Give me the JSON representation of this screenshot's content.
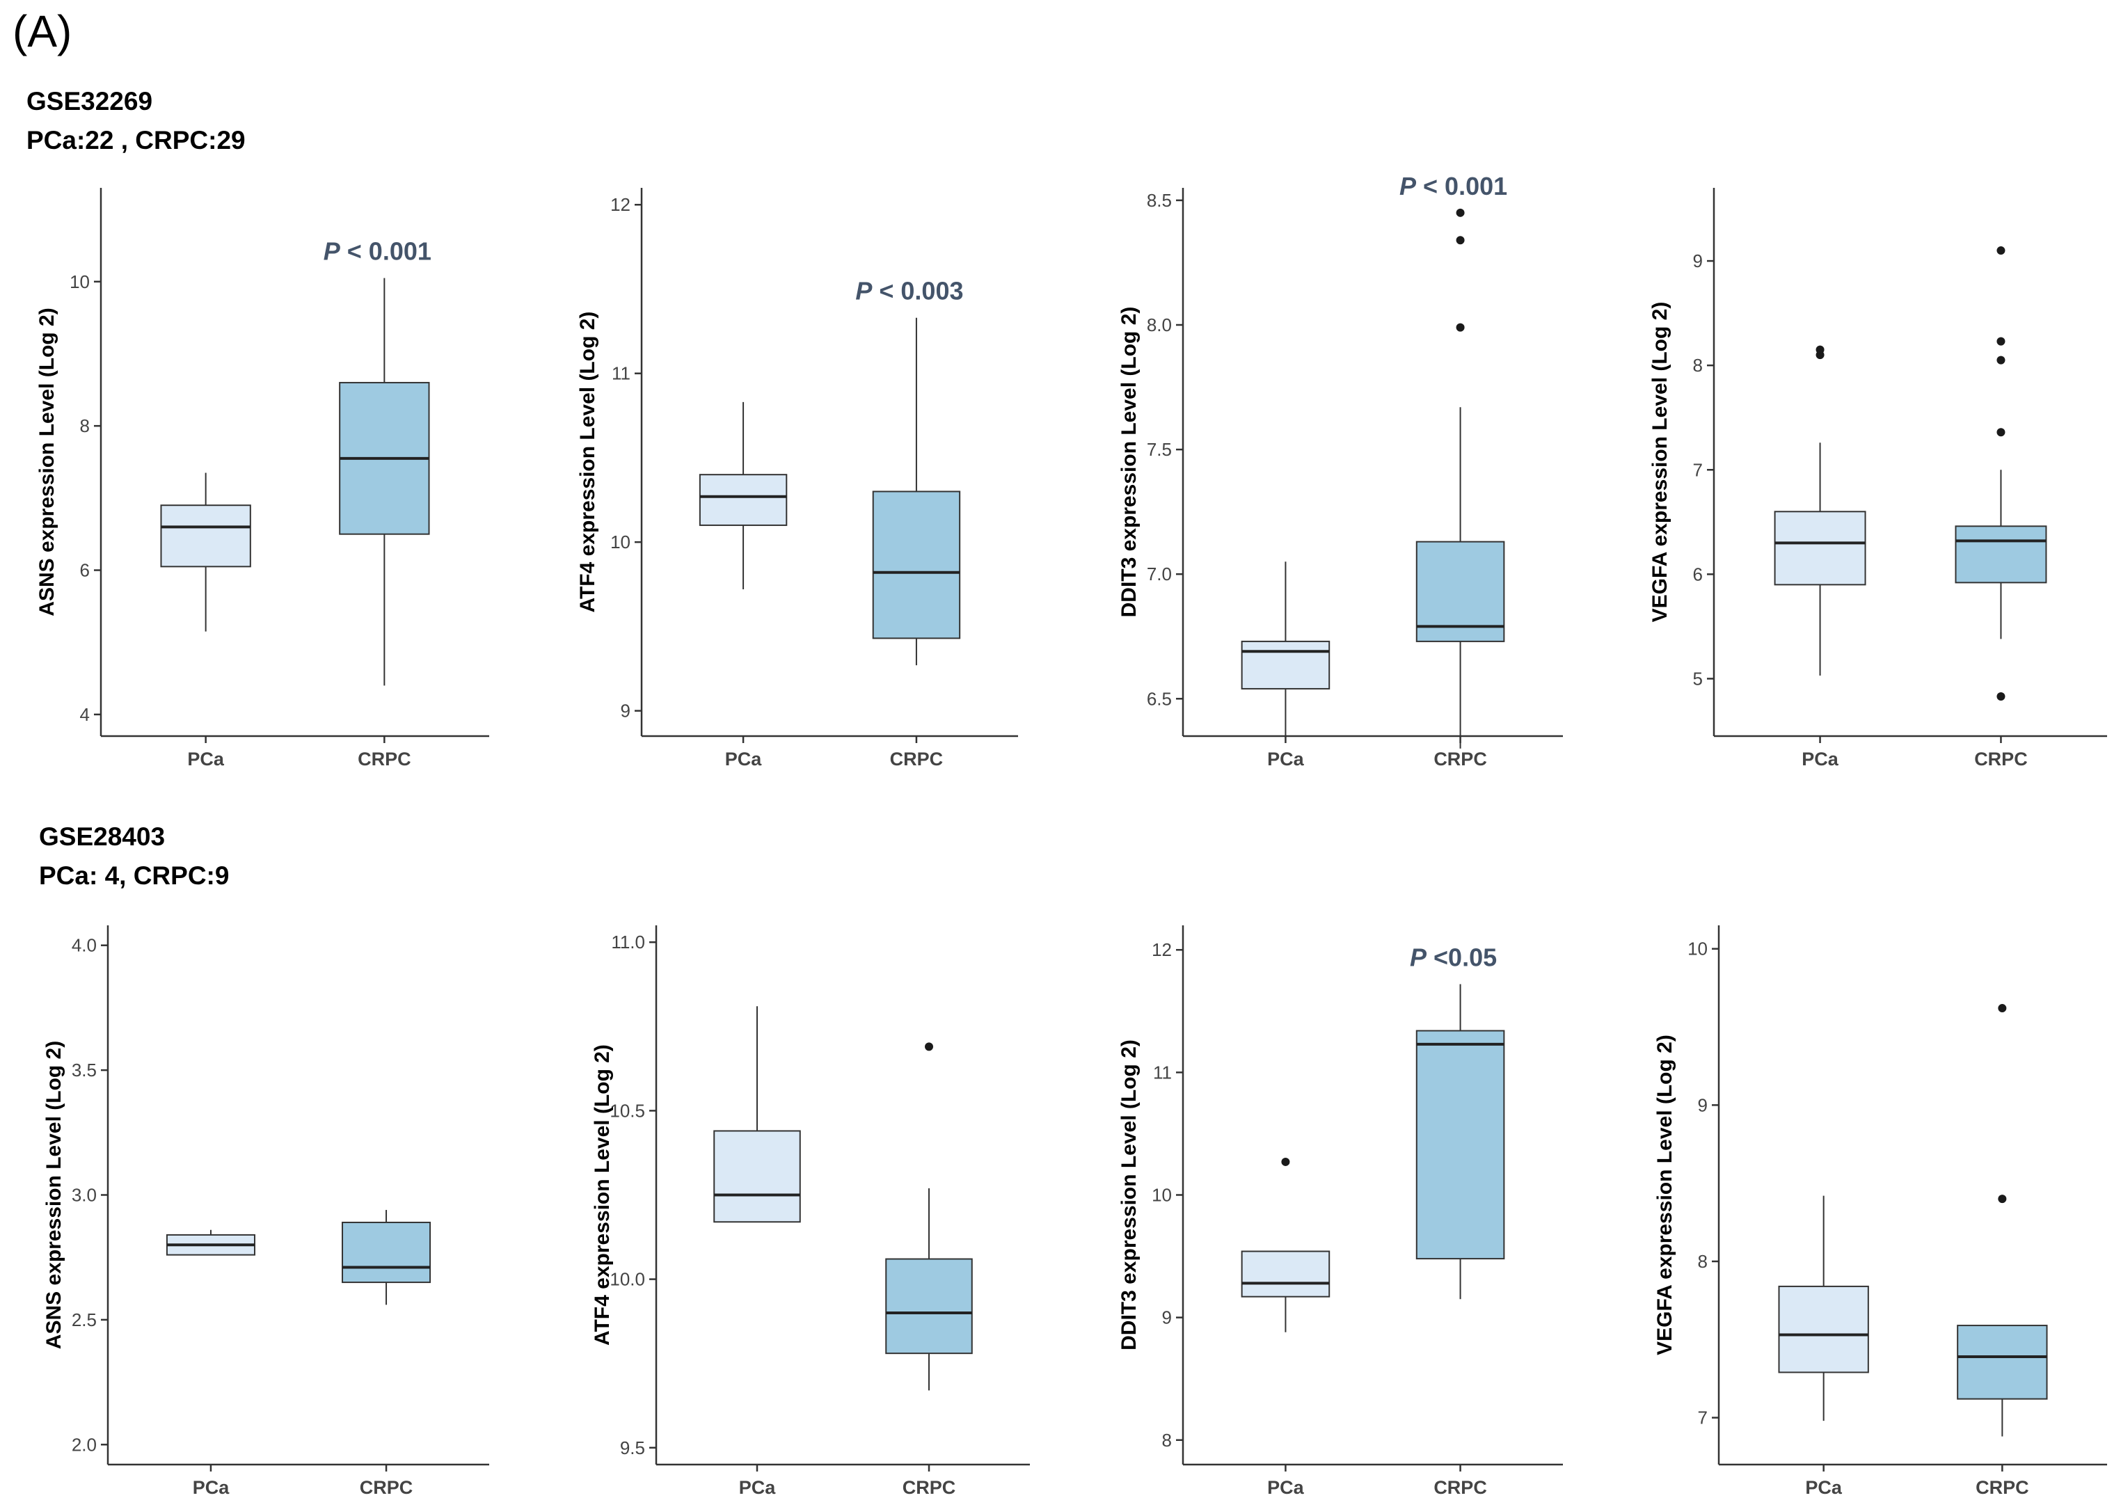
{
  "panel_label": "(A)",
  "rows": [
    {
      "dataset": "GSE32269",
      "samples": "PCa:22 , CRPC:29"
    },
    {
      "dataset": "GSE28403",
      "samples": "PCa: 4, CRPC:9"
    }
  ],
  "colors": {
    "pca_fill": "#dbe9f6",
    "crpc_fill": "#9ecae1",
    "box_stroke": "#333333",
    "pvalue_text": "#44546a",
    "outlier": "#1a1a1a"
  },
  "chart_data": [
    {
      "type": "box",
      "row": 0,
      "col": 0,
      "ylabel": "ASNS expression Level (Log 2)",
      "ylim": [
        3.7,
        11.3
      ],
      "yticks": [
        4,
        6,
        8,
        10
      ],
      "categories": [
        "PCa",
        "CRPC"
      ],
      "boxes": [
        {
          "group": "PCa",
          "min": 5.15,
          "q1": 6.05,
          "median": 6.6,
          "q3": 6.9,
          "max": 7.35,
          "outliers": []
        },
        {
          "group": "CRPC",
          "min": 4.4,
          "q1": 6.5,
          "median": 7.55,
          "q3": 8.6,
          "max": 10.05,
          "outliers": []
        }
      ],
      "pvalue": {
        "p": "P",
        "rest": " < 0.001"
      }
    },
    {
      "type": "box",
      "row": 0,
      "col": 1,
      "ylabel": "ATF4 expression Level (Log 2)",
      "ylim": [
        8.85,
        12.1
      ],
      "yticks": [
        9,
        10,
        11,
        12
      ],
      "categories": [
        "PCa",
        "CRPC"
      ],
      "boxes": [
        {
          "group": "PCa",
          "min": 9.72,
          "q1": 10.1,
          "median": 10.27,
          "q3": 10.4,
          "max": 10.83,
          "outliers": []
        },
        {
          "group": "CRPC",
          "min": 9.27,
          "q1": 9.43,
          "median": 9.82,
          "q3": 10.3,
          "max": 11.33,
          "outliers": []
        }
      ],
      "pvalue": {
        "p": "P",
        "rest": " < 0.003"
      }
    },
    {
      "type": "box",
      "row": 0,
      "col": 2,
      "ylabel": "DDIT3 expression Level (Log 2)",
      "ylim": [
        6.35,
        8.55
      ],
      "yticks": [
        6.5,
        7.0,
        7.5,
        8.0,
        8.5
      ],
      "ytick_labels": [
        "6.5",
        "7.0",
        "7.5",
        "8.0",
        "8.5"
      ],
      "categories": [
        "PCa",
        "CRPC"
      ],
      "boxes": [
        {
          "group": "PCa",
          "min": 6.35,
          "q1": 6.54,
          "median": 6.69,
          "q3": 6.73,
          "max": 7.05,
          "outliers": []
        },
        {
          "group": "CRPC",
          "min": 6.3,
          "q1": 6.73,
          "median": 6.79,
          "q3": 7.13,
          "max": 7.67,
          "outliers": [
            7.99,
            8.34,
            8.45
          ]
        }
      ],
      "pvalue": {
        "p": "P",
        "rest": " < 0.001"
      }
    },
    {
      "type": "box",
      "row": 0,
      "col": 3,
      "ylabel": "VEGFA expression Level (Log 2)",
      "ylim": [
        4.45,
        9.7
      ],
      "yticks": [
        5,
        6,
        7,
        8,
        9
      ],
      "categories": [
        "PCa",
        "CRPC"
      ],
      "boxes": [
        {
          "group": "PCa",
          "min": 5.03,
          "q1": 5.9,
          "median": 6.3,
          "q3": 6.6,
          "max": 7.26,
          "outliers": [
            8.1,
            8.15
          ]
        },
        {
          "group": "CRPC",
          "min": 5.38,
          "q1": 5.92,
          "median": 6.32,
          "q3": 6.46,
          "max": 7.0,
          "outliers": [
            4.83,
            7.36,
            8.05,
            8.23,
            9.1
          ]
        }
      ],
      "pvalue": null
    },
    {
      "type": "box",
      "row": 1,
      "col": 0,
      "ylabel": "ASNS expression Level (Log 2)",
      "ylim": [
        1.92,
        4.08
      ],
      "yticks": [
        2.0,
        2.5,
        3.0,
        3.5,
        4.0
      ],
      "ytick_labels": [
        "2.0",
        "2.5",
        "3.0",
        "3.5",
        "4.0"
      ],
      "categories": [
        "PCa",
        "CRPC"
      ],
      "boxes": [
        {
          "group": "PCa",
          "min": 2.76,
          "q1": 2.76,
          "median": 2.8,
          "q3": 2.84,
          "max": 2.86,
          "outliers": []
        },
        {
          "group": "CRPC",
          "min": 2.56,
          "q1": 2.65,
          "median": 2.71,
          "q3": 2.89,
          "max": 2.94,
          "outliers": []
        }
      ],
      "pvalue": null
    },
    {
      "type": "box",
      "row": 1,
      "col": 1,
      "ylabel": "ATF4 expression Level (Log 2)",
      "ylim": [
        9.45,
        11.05
      ],
      "yticks": [
        9.5,
        10.0,
        10.5,
        11.0
      ],
      "ytick_labels": [
        "9.5",
        "10.0",
        "10.5",
        "11.0"
      ],
      "categories": [
        "PCa",
        "CRPC"
      ],
      "boxes": [
        {
          "group": "PCa",
          "min": 10.17,
          "q1": 10.17,
          "median": 10.25,
          "q3": 10.44,
          "max": 10.81,
          "outliers": []
        },
        {
          "group": "CRPC",
          "min": 9.67,
          "q1": 9.78,
          "median": 9.9,
          "q3": 10.06,
          "max": 10.27,
          "outliers": [
            10.69
          ]
        }
      ],
      "pvalue": null
    },
    {
      "type": "box",
      "row": 1,
      "col": 2,
      "ylabel": "DDIT3 expression Level (Log 2)",
      "ylim": [
        7.8,
        12.2
      ],
      "yticks": [
        8,
        9,
        10,
        11,
        12
      ],
      "categories": [
        "PCa",
        "CRPC"
      ],
      "boxes": [
        {
          "group": "PCa",
          "min": 8.88,
          "q1": 9.17,
          "median": 9.28,
          "q3": 9.54,
          "max": 9.54,
          "outliers": [
            10.27
          ]
        },
        {
          "group": "CRPC",
          "min": 9.15,
          "q1": 9.48,
          "median": 11.23,
          "q3": 11.34,
          "max": 11.72,
          "outliers": []
        }
      ],
      "pvalue": {
        "p": "P",
        "rest": " <0.05"
      }
    },
    {
      "type": "box",
      "row": 1,
      "col": 3,
      "ylabel": "VEGFA expression Level (Log 2)",
      "ylim": [
        6.7,
        10.15
      ],
      "yticks": [
        7,
        8,
        9,
        10
      ],
      "categories": [
        "PCa",
        "CRPC"
      ],
      "boxes": [
        {
          "group": "PCa",
          "min": 6.98,
          "q1": 7.29,
          "median": 7.53,
          "q3": 7.84,
          "max": 8.42,
          "outliers": []
        },
        {
          "group": "CRPC",
          "min": 6.88,
          "q1": 7.12,
          "median": 7.39,
          "q3": 7.59,
          "max": 7.59,
          "outliers": [
            8.4,
            9.62
          ]
        }
      ],
      "pvalue": null
    }
  ]
}
